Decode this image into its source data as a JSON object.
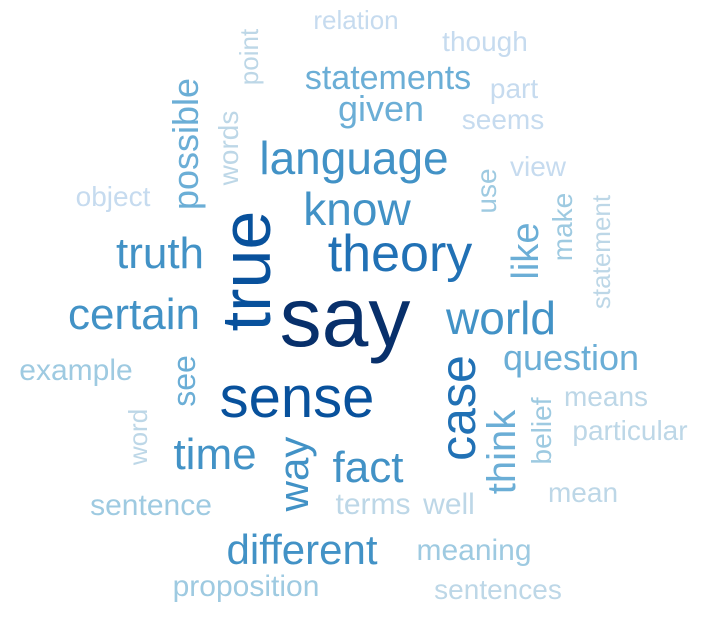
{
  "palette": {
    "darkest": "#08306b",
    "dark": "#08519c",
    "mid_dark": "#2171b5",
    "mid": "#4292c6",
    "mid_light": "#6baed6",
    "light": "#9ecae1",
    "lighter": "#bdd7e7",
    "lightest": "#c6dbef"
  },
  "words": [
    {
      "text": "say",
      "color": "#08306b",
      "vertical": false
    },
    {
      "text": "true",
      "color": "#08519c",
      "vertical": true
    },
    {
      "text": "sense",
      "color": "#08519c",
      "vertical": false
    },
    {
      "text": "case",
      "color": "#2171b5",
      "vertical": true
    },
    {
      "text": "theory",
      "color": "#2171b5",
      "vertical": false
    },
    {
      "text": "language",
      "color": "#4292c6",
      "vertical": false
    },
    {
      "text": "know",
      "color": "#4292c6",
      "vertical": false
    },
    {
      "text": "world",
      "color": "#4292c6",
      "vertical": false
    },
    {
      "text": "truth",
      "color": "#4292c6",
      "vertical": false
    },
    {
      "text": "certain",
      "color": "#4292c6",
      "vertical": false
    },
    {
      "text": "time",
      "color": "#4292c6",
      "vertical": false
    },
    {
      "text": "fact",
      "color": "#4292c6",
      "vertical": false
    },
    {
      "text": "way",
      "color": "#4292c6",
      "vertical": true
    },
    {
      "text": "different",
      "color": "#4292c6",
      "vertical": false
    },
    {
      "text": "think",
      "color": "#6baed6",
      "vertical": true
    },
    {
      "text": "question",
      "color": "#6baed6",
      "vertical": false
    },
    {
      "text": "like",
      "color": "#6baed6",
      "vertical": true
    },
    {
      "text": "possible",
      "color": "#6baed6",
      "vertical": true
    },
    {
      "text": "given",
      "color": "#6baed6",
      "vertical": false
    },
    {
      "text": "statements",
      "color": "#6baed6",
      "vertical": false
    },
    {
      "text": "see",
      "color": "#6baed6",
      "vertical": true
    },
    {
      "text": "example",
      "color": "#9ecae1",
      "vertical": false
    },
    {
      "text": "sentence",
      "color": "#9ecae1",
      "vertical": false
    },
    {
      "text": "proposition",
      "color": "#9ecae1",
      "vertical": false
    },
    {
      "text": "meaning",
      "color": "#9ecae1",
      "vertical": false
    },
    {
      "text": "use",
      "color": "#9ecae1",
      "vertical": true
    },
    {
      "text": "make",
      "color": "#9ecae1",
      "vertical": true
    },
    {
      "text": "belief",
      "color": "#9ecae1",
      "vertical": true
    },
    {
      "text": "terms",
      "color": "#bdd7e7",
      "vertical": false
    },
    {
      "text": "well",
      "color": "#bdd7e7",
      "vertical": false
    },
    {
      "text": "words",
      "color": "#bdd7e7",
      "vertical": true
    },
    {
      "text": "point",
      "color": "#bdd7e7",
      "vertical": true
    },
    {
      "text": "statement",
      "color": "#bdd7e7",
      "vertical": true
    },
    {
      "text": "word",
      "color": "#bdd7e7",
      "vertical": true
    },
    {
      "text": "particular",
      "color": "#bdd7e7",
      "vertical": false
    },
    {
      "text": "mean",
      "color": "#bdd7e7",
      "vertical": false
    },
    {
      "text": "means",
      "color": "#bdd7e7",
      "vertical": false
    },
    {
      "text": "sentences",
      "color": "#bdd7e7",
      "vertical": false
    },
    {
      "text": "object",
      "color": "#c6dbef",
      "vertical": false
    },
    {
      "text": "view",
      "color": "#c6dbef",
      "vertical": false
    },
    {
      "text": "seems",
      "color": "#c6dbef",
      "vertical": false
    },
    {
      "text": "part",
      "color": "#c6dbef",
      "vertical": false
    },
    {
      "text": "though",
      "color": "#c6dbef",
      "vertical": false
    },
    {
      "text": "relation",
      "color": "#c6dbef",
      "vertical": false
    }
  ]
}
